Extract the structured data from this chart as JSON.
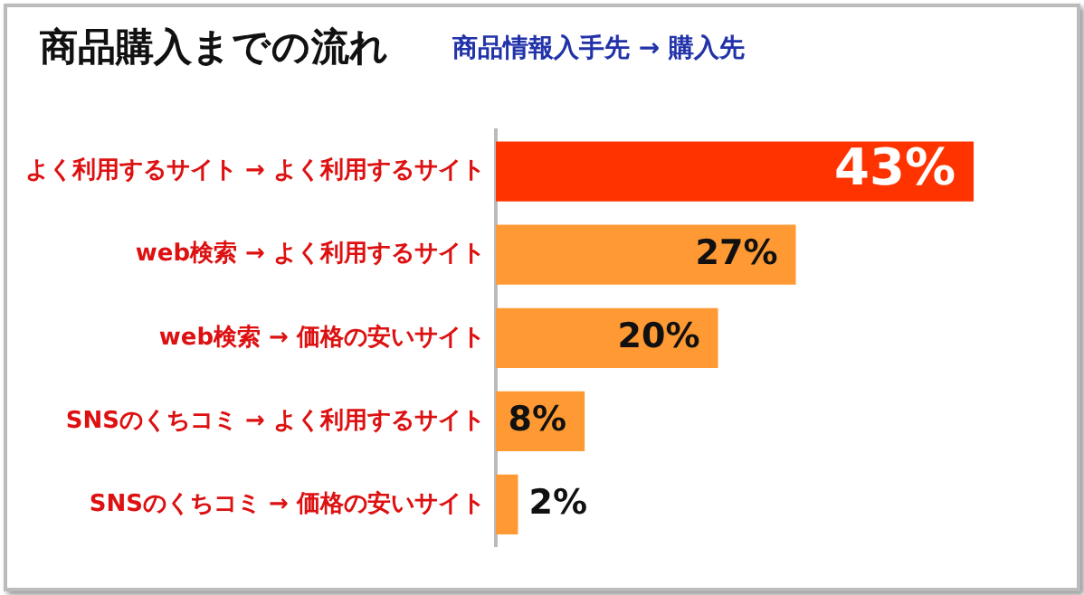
{
  "chart_data": {
    "type": "bar",
    "orientation": "horizontal",
    "title": "商品購入までの流れ",
    "subtitle": "商品情報入手先 → 購入先",
    "categories": [
      "よく利用するサイト → よく利用するサイト",
      "web検索 → よく利用するサイト",
      "web検索 → 価格の安いサイト",
      "SNSのくちコミ → よく利用するサイト",
      "SNSのくちコミ → 価格の安いサイト"
    ],
    "values": [
      43,
      27,
      20,
      8,
      2
    ],
    "colors": [
      "#ff3300",
      "#ff9933",
      "#ff9933",
      "#ff9933",
      "#ff9933"
    ],
    "value_labels": [
      "43%",
      "27%",
      "20%",
      "8%",
      "2%"
    ],
    "relative": false,
    "grid": false,
    "legend": false
  }
}
